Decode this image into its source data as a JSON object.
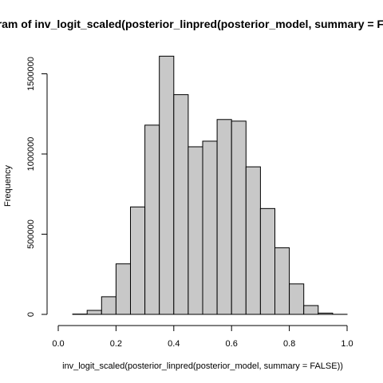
{
  "chart_data": {
    "type": "bar",
    "title": "Histogram of inv_logit_scaled(posterior_linpred(posterior_model, summary = FALSE))",
    "xlabel": "inv_logit_scaled(posterior_linpred(posterior_model, summary = FALSE))",
    "ylabel": "Frequency",
    "xlim": [
      0.0,
      1.0
    ],
    "ylim": [
      0,
      1600000
    ],
    "x_ticks": [
      "0.0",
      "0.2",
      "0.4",
      "0.6",
      "0.8",
      "1.0"
    ],
    "y_ticks": [
      "0",
      "500000",
      "1000000",
      "1500000"
    ],
    "bins": [
      {
        "start": 0.0,
        "end": 0.05,
        "value": 0
      },
      {
        "start": 0.05,
        "end": 0.1,
        "value": 2000
      },
      {
        "start": 0.1,
        "end": 0.15,
        "value": 25000
      },
      {
        "start": 0.15,
        "end": 0.2,
        "value": 110000
      },
      {
        "start": 0.2,
        "end": 0.25,
        "value": 315000
      },
      {
        "start": 0.25,
        "end": 0.3,
        "value": 670000
      },
      {
        "start": 0.3,
        "end": 0.35,
        "value": 1180000
      },
      {
        "start": 0.35,
        "end": 0.4,
        "value": 1610000
      },
      {
        "start": 0.4,
        "end": 0.45,
        "value": 1370000
      },
      {
        "start": 0.45,
        "end": 0.5,
        "value": 1045000
      },
      {
        "start": 0.5,
        "end": 0.55,
        "value": 1080000
      },
      {
        "start": 0.55,
        "end": 0.6,
        "value": 1215000
      },
      {
        "start": 0.6,
        "end": 0.65,
        "value": 1205000
      },
      {
        "start": 0.65,
        "end": 0.7,
        "value": 920000
      },
      {
        "start": 0.7,
        "end": 0.75,
        "value": 660000
      },
      {
        "start": 0.75,
        "end": 0.8,
        "value": 415000
      },
      {
        "start": 0.8,
        "end": 0.85,
        "value": 190000
      },
      {
        "start": 0.85,
        "end": 0.9,
        "value": 55000
      },
      {
        "start": 0.9,
        "end": 0.95,
        "value": 8000
      },
      {
        "start": 0.95,
        "end": 1.0,
        "value": 500
      }
    ],
    "grid": false,
    "bar_fill": "#c8c8c8",
    "bar_stroke": "#000000"
  }
}
